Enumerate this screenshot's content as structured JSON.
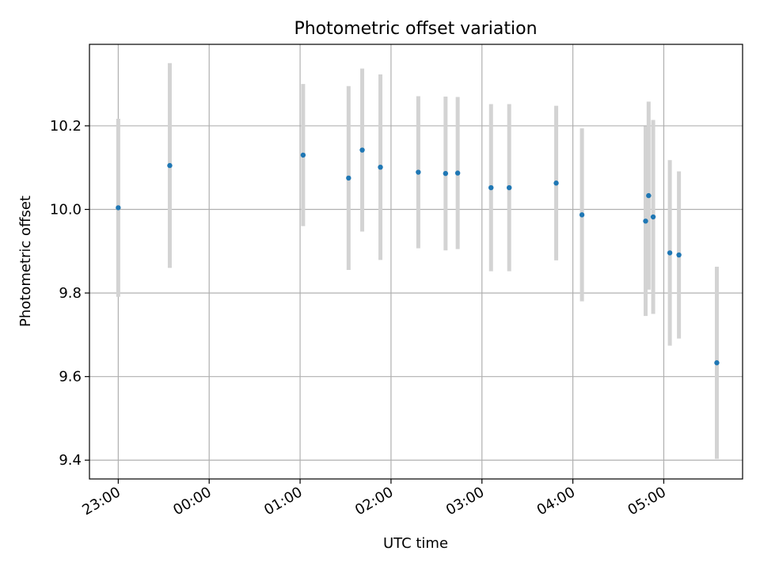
{
  "chart_data": {
    "type": "scatter",
    "title": "Photometric offset variation",
    "xlabel": "UTC time",
    "ylabel": "Photometric offset",
    "xlim": [
      "22:41",
      "05:52"
    ],
    "ylim": [
      9.355,
      10.395
    ],
    "x_ticks": [
      "23:00",
      "00:00",
      "01:00",
      "02:00",
      "03:00",
      "04:00",
      "05:00"
    ],
    "y_ticks": [
      "9.4",
      "9.6",
      "9.8",
      "10.0",
      "10.2"
    ],
    "grid": true,
    "colors": {
      "points": "#1f77b4",
      "errorbars": "#d3d3d3",
      "grid": "#b0b0b0"
    },
    "points": [
      {
        "x": "23:00",
        "y": 10.004,
        "yerr": 0.213
      },
      {
        "x": "23:34",
        "y": 10.105,
        "yerr": 0.245
      },
      {
        "x": "01:02",
        "y": 10.13,
        "yerr": 0.17
      },
      {
        "x": "01:32",
        "y": 10.075,
        "yerr": 0.22
      },
      {
        "x": "01:41",
        "y": 10.142,
        "yerr": 0.195
      },
      {
        "x": "01:53",
        "y": 10.101,
        "yerr": 0.222
      },
      {
        "x": "02:18",
        "y": 10.089,
        "yerr": 0.182
      },
      {
        "x": "02:36",
        "y": 10.086,
        "yerr": 0.184
      },
      {
        "x": "02:44",
        "y": 10.087,
        "yerr": 0.182
      },
      {
        "x": "03:06",
        "y": 10.052,
        "yerr": 0.2
      },
      {
        "x": "03:18",
        "y": 10.052,
        "yerr": 0.2
      },
      {
        "x": "03:49",
        "y": 10.063,
        "yerr": 0.185
      },
      {
        "x": "04:06",
        "y": 9.987,
        "yerr": 0.207
      },
      {
        "x": "04:48",
        "y": 9.972,
        "yerr": 0.227
      },
      {
        "x": "04:50",
        "y": 10.033,
        "yerr": 0.225
      },
      {
        "x": "04:53",
        "y": 9.982,
        "yerr": 0.232
      },
      {
        "x": "05:04",
        "y": 9.896,
        "yerr": 0.222
      },
      {
        "x": "05:10",
        "y": 9.891,
        "yerr": 0.2
      },
      {
        "x": "05:35",
        "y": 9.633,
        "yerr": 0.23
      }
    ]
  }
}
